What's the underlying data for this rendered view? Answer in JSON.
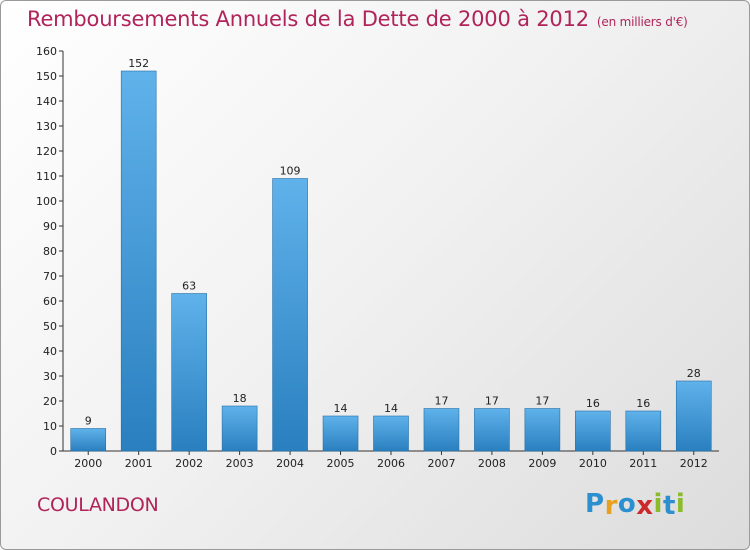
{
  "title": "Remboursements Annuels de la Dette de 2000 à 2012",
  "unit": "(en milliers d'€)",
  "commune": "COULANDON",
  "logo": {
    "letters": [
      "P",
      "r",
      "o",
      "x",
      "i",
      "t",
      "i"
    ],
    "colors": [
      "#2b8fd0",
      "#e8a020",
      "#2b8fd0",
      "#cc2a2a",
      "#8bbb2a",
      "#2b8fd0",
      "#8bbb2a"
    ]
  },
  "colors": {
    "bar_light": "#5fb2ea",
    "bar_dark": "#2a7fbf",
    "title": "#b0245a"
  },
  "chart_data": {
    "type": "bar",
    "categories": [
      "2000",
      "2001",
      "2002",
      "2003",
      "2004",
      "2005",
      "2006",
      "2007",
      "2008",
      "2009",
      "2010",
      "2011",
      "2012"
    ],
    "values": [
      9,
      152,
      63,
      18,
      109,
      14,
      14,
      17,
      17,
      17,
      16,
      16,
      28
    ],
    "ylim": [
      0,
      160
    ],
    "yticks": [
      0,
      10,
      20,
      30,
      40,
      50,
      60,
      70,
      80,
      90,
      100,
      110,
      120,
      130,
      140,
      150,
      160
    ],
    "grid": false
  }
}
